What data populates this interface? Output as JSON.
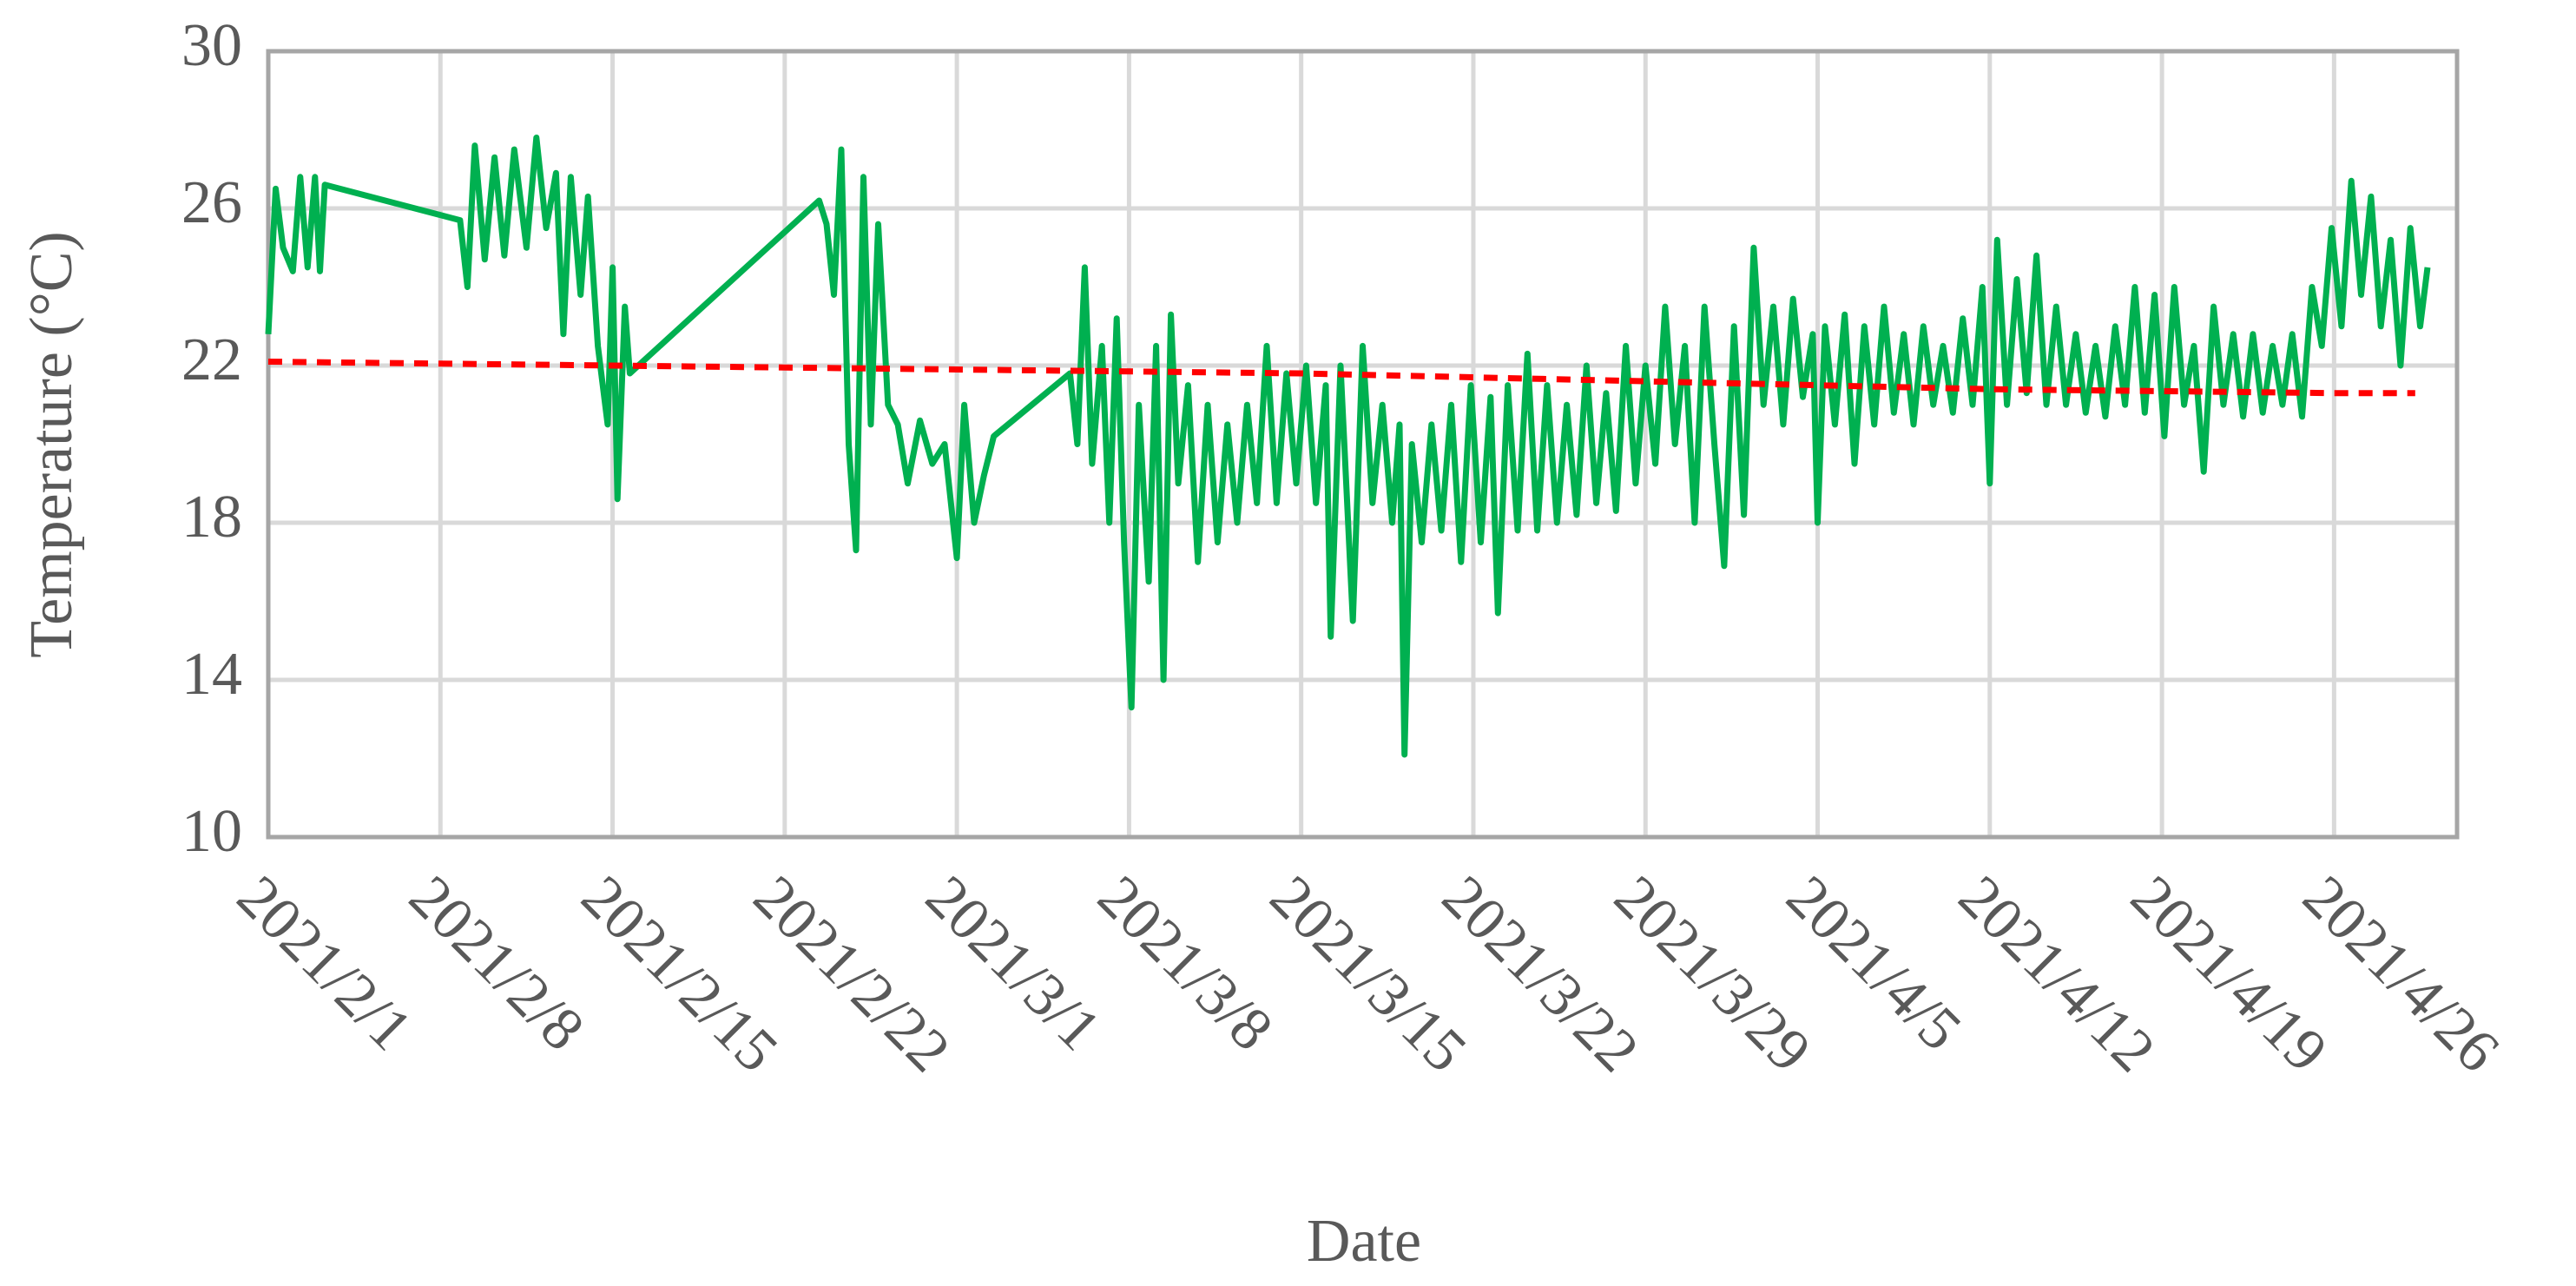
{
  "chart_data": {
    "type": "line",
    "x_label": "Date",
    "y_label": "Temperature (°C)",
    "xlim": [
      0,
      89
    ],
    "xticks": [
      {
        "value": 0,
        "label": "2021/2/1"
      },
      {
        "value": 7,
        "label": "2021/2/8"
      },
      {
        "value": 14,
        "label": "2021/2/15"
      },
      {
        "value": 21,
        "label": "2021/2/22"
      },
      {
        "value": 28,
        "label": "2021/3/1"
      },
      {
        "value": 35,
        "label": "2021/3/8"
      },
      {
        "value": 42,
        "label": "2021/3/15"
      },
      {
        "value": 49,
        "label": "2021/3/22"
      },
      {
        "value": 56,
        "label": "2021/3/29"
      },
      {
        "value": 63,
        "label": "2021/4/5"
      },
      {
        "value": 70,
        "label": "2021/4/12"
      },
      {
        "value": 77,
        "label": "2021/4/19"
      },
      {
        "value": 84,
        "label": "2021/4/26"
      }
    ],
    "ylim": [
      10,
      30
    ],
    "yticks": [
      10,
      14,
      18,
      22,
      26,
      30
    ],
    "grid": true,
    "series": [
      {
        "color": "#00b050",
        "dashed": false,
        "x": [
          0,
          0.3,
          0.6,
          1.0,
          1.3,
          1.6,
          1.9,
          2.1,
          2.3,
          7.8,
          8.1,
          8.4,
          8.8,
          9.2,
          9.6,
          10.0,
          10.5,
          10.9,
          11.3,
          11.7,
          12.0,
          12.3,
          12.7,
          13.0,
          13.4,
          13.8,
          14.0,
          14.2,
          14.5,
          14.7,
          22.4,
          22.7,
          23.0,
          23.3,
          23.6,
          23.9,
          24.2,
          24.5,
          24.8,
          25.2,
          25.6,
          26.0,
          26.5,
          27.0,
          27.5,
          28.0,
          28.3,
          28.7,
          29.1,
          29.5,
          32.6,
          32.9,
          33.2,
          33.5,
          33.9,
          34.2,
          34.5,
          34.8,
          35.1,
          35.4,
          35.8,
          36.1,
          36.4,
          36.7,
          37.0,
          37.4,
          37.8,
          38.2,
          38.6,
          39.0,
          39.4,
          39.8,
          40.2,
          40.6,
          41.0,
          41.4,
          41.8,
          42.2,
          42.6,
          43.0,
          43.2,
          43.6,
          44.1,
          44.5,
          44.9,
          45.3,
          45.7,
          46.0,
          46.2,
          46.5,
          46.9,
          47.3,
          47.7,
          48.1,
          48.5,
          48.9,
          49.3,
          49.7,
          50.0,
          50.4,
          50.8,
          51.2,
          51.6,
          52.0,
          52.4,
          52.8,
          53.2,
          53.6,
          54.0,
          54.4,
          54.8,
          55.2,
          55.6,
          56.0,
          56.4,
          56.8,
          57.2,
          57.6,
          58.0,
          58.4,
          58.8,
          59.2,
          59.6,
          60.0,
          60.4,
          60.8,
          61.2,
          61.6,
          62.0,
          62.4,
          62.8,
          63.0,
          63.3,
          63.7,
          64.1,
          64.5,
          64.9,
          65.3,
          65.7,
          66.1,
          66.5,
          66.9,
          67.3,
          67.7,
          68.1,
          68.5,
          68.9,
          69.3,
          69.7,
          70.0,
          70.3,
          70.7,
          71.1,
          71.5,
          71.9,
          72.3,
          72.7,
          73.1,
          73.5,
          73.9,
          74.3,
          74.7,
          75.1,
          75.5,
          75.9,
          76.3,
          76.7,
          77.1,
          77.5,
          77.9,
          78.3,
          78.7,
          79.1,
          79.5,
          79.9,
          80.3,
          80.7,
          81.1,
          81.5,
          81.9,
          82.3,
          82.7,
          83.1,
          83.5,
          83.9,
          84.3,
          84.7,
          85.1,
          85.5,
          85.9,
          86.3,
          86.7,
          87.1,
          87.5,
          87.8
        ],
        "values": [
          22.8,
          26.5,
          25.0,
          24.4,
          26.8,
          24.5,
          26.8,
          24.4,
          26.6,
          25.7,
          24.0,
          27.6,
          24.7,
          27.3,
          24.8,
          27.5,
          25.0,
          27.8,
          25.5,
          26.9,
          22.8,
          26.8,
          23.8,
          26.3,
          22.5,
          20.5,
          24.5,
          18.6,
          23.5,
          21.8,
          26.2,
          25.6,
          23.8,
          27.5,
          20.0,
          17.3,
          26.8,
          20.5,
          25.6,
          21.0,
          20.5,
          19.0,
          20.6,
          19.5,
          20.0,
          17.1,
          21.0,
          18.0,
          19.2,
          20.2,
          21.8,
          20.0,
          24.5,
          19.5,
          22.5,
          18.0,
          23.2,
          17.5,
          13.3,
          21.0,
          16.5,
          22.5,
          14.0,
          23.3,
          19.0,
          21.5,
          17.0,
          21.0,
          17.5,
          20.5,
          18.0,
          21.0,
          18.5,
          22.5,
          18.5,
          21.8,
          19.0,
          22.0,
          18.5,
          21.5,
          15.1,
          22.0,
          15.5,
          22.5,
          18.5,
          21.0,
          18.0,
          20.5,
          12.1,
          20.0,
          17.5,
          20.5,
          17.8,
          21.0,
          17.0,
          21.5,
          17.5,
          21.2,
          15.7,
          21.5,
          17.8,
          22.3,
          17.8,
          21.5,
          18.0,
          21.0,
          18.2,
          22.0,
          18.5,
          21.3,
          18.3,
          22.5,
          19.0,
          22.0,
          19.5,
          23.5,
          20.0,
          22.5,
          18.0,
          23.5,
          20.0,
          16.9,
          23.0,
          18.2,
          25.0,
          21.0,
          23.5,
          20.5,
          23.7,
          21.2,
          22.8,
          18.0,
          23.0,
          20.5,
          23.3,
          19.5,
          23.0,
          20.5,
          23.5,
          20.8,
          22.8,
          20.5,
          23.0,
          21.0,
          22.5,
          20.8,
          23.2,
          21.0,
          24.0,
          19.0,
          25.2,
          21.0,
          24.2,
          21.3,
          24.8,
          21.0,
          23.5,
          21.0,
          22.8,
          20.8,
          22.5,
          20.7,
          23.0,
          21.0,
          24.0,
          20.8,
          23.8,
          20.2,
          24.0,
          21.0,
          22.5,
          19.3,
          23.5,
          21.0,
          22.8,
          20.7,
          22.8,
          20.8,
          22.5,
          21.0,
          22.8,
          20.7,
          24.0,
          22.5,
          25.5,
          23.0,
          26.7,
          23.8,
          26.3,
          23.0,
          25.2,
          22.0,
          25.5,
          23.0,
          24.5
        ]
      },
      {
        "color": "#ff0000",
        "dashed": true,
        "x": [
          0,
          14,
          28,
          42,
          56,
          70,
          84,
          87.3
        ],
        "values": [
          22.1,
          22.0,
          21.9,
          21.8,
          21.6,
          21.4,
          21.3,
          21.3
        ]
      }
    ]
  }
}
